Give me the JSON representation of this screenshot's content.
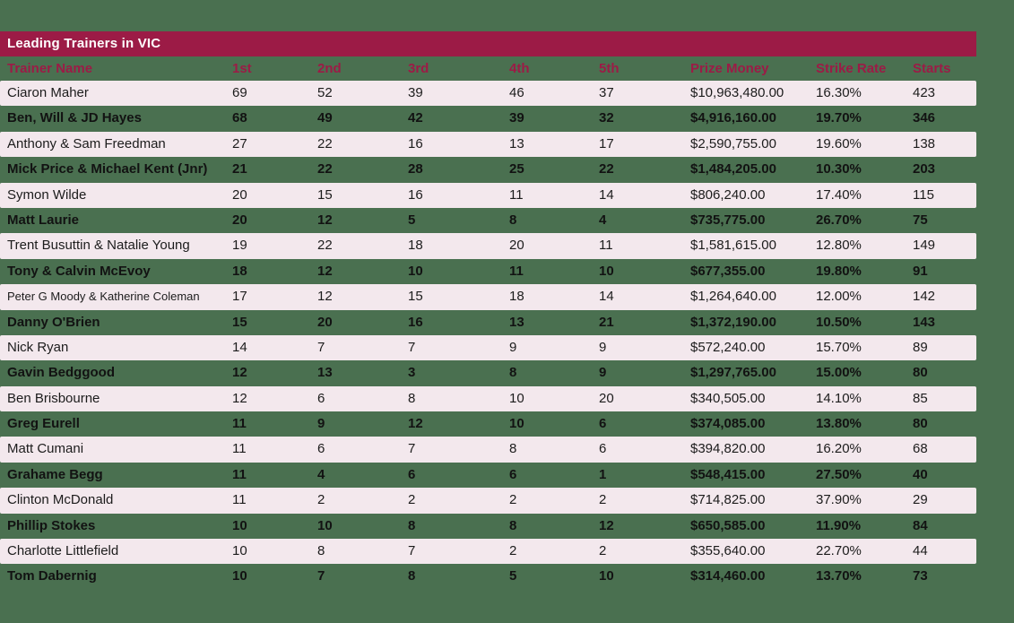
{
  "page": {
    "background_color": "#4A7050"
  },
  "title_bar": {
    "label": "Leading Trainers in VIC",
    "background_color": "#9C1B46",
    "text_color": "#FFFFFF"
  },
  "table": {
    "header_text_color": "#9C1B46",
    "pink_row_color": "#F3E8ED",
    "columns": [
      "Trainer Name",
      "1st",
      "2nd",
      "3rd",
      "4th",
      "5th",
      "Prize Money",
      "Strike Rate",
      "Starts"
    ],
    "rows": [
      [
        "Ciaron Maher",
        "69",
        "52",
        "39",
        "46",
        "37",
        "$10,963,480.00",
        "16.30%",
        "423"
      ],
      [
        "Ben, Will & JD Hayes",
        "68",
        "49",
        "42",
        "39",
        "32",
        "$4,916,160.00",
        "19.70%",
        "346"
      ],
      [
        "Anthony & Sam Freedman",
        "27",
        "22",
        "16",
        "13",
        "17",
        "$2,590,755.00",
        "19.60%",
        "138"
      ],
      [
        "Mick Price & Michael Kent (Jnr)",
        "21",
        "22",
        "28",
        "25",
        "22",
        "$1,484,205.00",
        "10.30%",
        "203"
      ],
      [
        "Symon Wilde",
        "20",
        "15",
        "16",
        "11",
        "14",
        "$806,240.00",
        "17.40%",
        "115"
      ],
      [
        "Matt Laurie",
        "20",
        "12",
        "5",
        "8",
        "4",
        "$735,775.00",
        "26.70%",
        "75"
      ],
      [
        "Trent Busuttin & Natalie Young",
        "19",
        "22",
        "18",
        "20",
        "11",
        "$1,581,615.00",
        "12.80%",
        "149"
      ],
      [
        "Tony & Calvin McEvoy",
        "18",
        "12",
        "10",
        "11",
        "10",
        "$677,355.00",
        "19.80%",
        "91"
      ],
      [
        "Peter G Moody & Katherine Coleman",
        "17",
        "12",
        "15",
        "18",
        "14",
        "$1,264,640.00",
        "12.00%",
        "142"
      ],
      [
        "Danny O'Brien",
        "15",
        "20",
        "16",
        "13",
        "21",
        "$1,372,190.00",
        "10.50%",
        "143"
      ],
      [
        "Nick Ryan",
        "14",
        "7",
        "7",
        "9",
        "9",
        "$572,240.00",
        "15.70%",
        "89"
      ],
      [
        "Gavin Bedggood",
        "12",
        "13",
        "3",
        "8",
        "9",
        "$1,297,765.00",
        "15.00%",
        "80"
      ],
      [
        "Ben Brisbourne",
        "12",
        "6",
        "8",
        "10",
        "20",
        "$340,505.00",
        "14.10%",
        "85"
      ],
      [
        "Greg Eurell",
        "11",
        "9",
        "12",
        "10",
        "6",
        "$374,085.00",
        "13.80%",
        "80"
      ],
      [
        "Matt Cumani",
        "11",
        "6",
        "7",
        "8",
        "6",
        "$394,820.00",
        "16.20%",
        "68"
      ],
      [
        "Grahame Begg",
        "11",
        "4",
        "6",
        "6",
        "1",
        "$548,415.00",
        "27.50%",
        "40"
      ],
      [
        "Clinton McDonald",
        "11",
        "2",
        "2",
        "2",
        "2",
        "$714,825.00",
        "37.90%",
        "29"
      ],
      [
        "Phillip Stokes",
        "10",
        "10",
        "8",
        "8",
        "12",
        "$650,585.00",
        "11.90%",
        "84"
      ],
      [
        "Charlotte Littlefield",
        "10",
        "8",
        "7",
        "2",
        "2",
        "$355,640.00",
        "22.70%",
        "44"
      ],
      [
        "Tom Dabernig",
        "10",
        "7",
        "8",
        "5",
        "10",
        "$314,460.00",
        "13.70%",
        "73"
      ]
    ]
  }
}
